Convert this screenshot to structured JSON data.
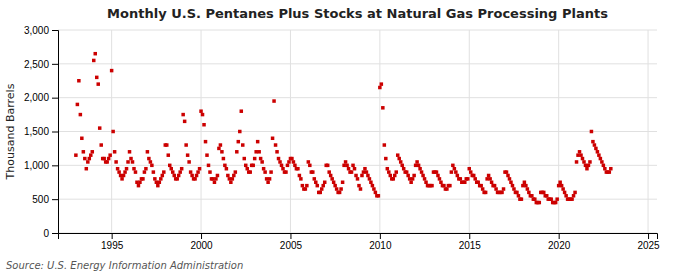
{
  "chart_data": {
    "type": "scatter",
    "title": "Monthly U.S. Pentanes Plus Stocks at Natural Gas Processing Plants",
    "y_label": "Thousand Barrels",
    "annotations": [
      "Source: U.S. Energy Information Administration"
    ],
    "color": "#cc0000",
    "marker": "square",
    "grid": true,
    "xlim": [
      1992.0,
      2025.5
    ],
    "ylim": [
      0,
      3000
    ],
    "xticks": [
      1995,
      2000,
      2005,
      2010,
      2015,
      2020,
      2025
    ],
    "yticks": [
      0,
      500,
      {
        "value": 1000,
        "label": "1,000"
      },
      {
        "value": 1500,
        "label": "1,500"
      },
      {
        "value": 2000,
        "label": "2,000"
      },
      {
        "value": 2500,
        "label": "2,500"
      },
      {
        "value": 3000,
        "label": "3,000"
      }
    ],
    "x": [
      1993.0,
      1993.083,
      1993.167,
      1993.25,
      1993.333,
      1993.417,
      1993.5,
      1993.583,
      1993.667,
      1993.75,
      1993.833,
      1993.917,
      1994.0,
      1994.083,
      1994.167,
      1994.25,
      1994.333,
      1994.417,
      1994.5,
      1994.583,
      1994.667,
      1994.75,
      1994.833,
      1994.917,
      1995.0,
      1995.083,
      1995.167,
      1995.25,
      1995.333,
      1995.417,
      1995.5,
      1995.583,
      1995.667,
      1995.75,
      1995.833,
      1995.917,
      1996.0,
      1996.083,
      1996.167,
      1996.25,
      1996.333,
      1996.417,
      1996.5,
      1996.583,
      1996.667,
      1996.75,
      1996.833,
      1996.917,
      1997.0,
      1997.083,
      1997.167,
      1997.25,
      1997.333,
      1997.417,
      1997.5,
      1997.583,
      1997.667,
      1997.75,
      1997.833,
      1997.917,
      1998.0,
      1998.083,
      1998.167,
      1998.25,
      1998.333,
      1998.417,
      1998.5,
      1998.583,
      1998.667,
      1998.75,
      1998.833,
      1998.917,
      1999.0,
      1999.083,
      1999.167,
      1999.25,
      1999.333,
      1999.417,
      1999.5,
      1999.583,
      1999.667,
      1999.75,
      1999.833,
      1999.917,
      2000.0,
      2000.083,
      2000.167,
      2000.25,
      2000.333,
      2000.417,
      2000.5,
      2000.583,
      2000.667,
      2000.75,
      2000.833,
      2000.917,
      2001.0,
      2001.083,
      2001.167,
      2001.25,
      2001.333,
      2001.417,
      2001.5,
      2001.583,
      2001.667,
      2001.75,
      2001.833,
      2001.917,
      2002.0,
      2002.083,
      2002.167,
      2002.25,
      2002.333,
      2002.417,
      2002.5,
      2002.583,
      2002.667,
      2002.75,
      2002.833,
      2002.917,
      2003.0,
      2003.083,
      2003.167,
      2003.25,
      2003.333,
      2003.417,
      2003.5,
      2003.583,
      2003.667,
      2003.75,
      2003.833,
      2003.917,
      2004.0,
      2004.083,
      2004.167,
      2004.25,
      2004.333,
      2004.417,
      2004.5,
      2004.583,
      2004.667,
      2004.75,
      2004.833,
      2004.917,
      2005.0,
      2005.083,
      2005.167,
      2005.25,
      2005.333,
      2005.417,
      2005.5,
      2005.583,
      2005.667,
      2005.75,
      2005.833,
      2005.917,
      2006.0,
      2006.083,
      2006.167,
      2006.25,
      2006.333,
      2006.417,
      2006.5,
      2006.583,
      2006.667,
      2006.75,
      2006.833,
      2006.917,
      2007.0,
      2007.083,
      2007.167,
      2007.25,
      2007.333,
      2007.417,
      2007.5,
      2007.583,
      2007.667,
      2007.75,
      2007.833,
      2007.917,
      2008.0,
      2008.083,
      2008.167,
      2008.25,
      2008.333,
      2008.417,
      2008.5,
      2008.583,
      2008.667,
      2008.75,
      2008.833,
      2008.917,
      2009.0,
      2009.083,
      2009.167,
      2009.25,
      2009.333,
      2009.417,
      2009.5,
      2009.583,
      2009.667,
      2009.75,
      2009.833,
      2009.917,
      2010.0,
      2010.083,
      2010.167,
      2010.25,
      2010.333,
      2010.417,
      2010.5,
      2010.583,
      2010.667,
      2010.75,
      2010.833,
      2010.917,
      2011.0,
      2011.083,
      2011.167,
      2011.25,
      2011.333,
      2011.417,
      2011.5,
      2011.583,
      2011.667,
      2011.75,
      2011.833,
      2011.917,
      2012.0,
      2012.083,
      2012.167,
      2012.25,
      2012.333,
      2012.417,
      2012.5,
      2012.583,
      2012.667,
      2012.75,
      2012.833,
      2012.917,
      2013.0,
      2013.083,
      2013.167,
      2013.25,
      2013.333,
      2013.417,
      2013.5,
      2013.583,
      2013.667,
      2013.75,
      2013.833,
      2013.917,
      2014.0,
      2014.083,
      2014.167,
      2014.25,
      2014.333,
      2014.417,
      2014.5,
      2014.583,
      2014.667,
      2014.75,
      2014.833,
      2014.917,
      2015.0,
      2015.083,
      2015.167,
      2015.25,
      2015.333,
      2015.417,
      2015.5,
      2015.583,
      2015.667,
      2015.75,
      2015.833,
      2015.917,
      2016.0,
      2016.083,
      2016.167,
      2016.25,
      2016.333,
      2016.417,
      2016.5,
      2016.583,
      2016.667,
      2016.75,
      2016.833,
      2016.917,
      2017.0,
      2017.083,
      2017.167,
      2017.25,
      2017.333,
      2017.417,
      2017.5,
      2017.583,
      2017.667,
      2017.75,
      2017.833,
      2017.917,
      2018.0,
      2018.083,
      2018.167,
      2018.25,
      2018.333,
      2018.417,
      2018.5,
      2018.583,
      2018.667,
      2018.75,
      2018.833,
      2018.917,
      2019.0,
      2019.083,
      2019.167,
      2019.25,
      2019.333,
      2019.417,
      2019.5,
      2019.583,
      2019.667,
      2019.75,
      2019.833,
      2019.917,
      2020.0,
      2020.083,
      2020.167,
      2020.25,
      2020.333,
      2020.417,
      2020.5,
      2020.583,
      2020.667,
      2020.75,
      2020.833,
      2020.917,
      2021.0,
      2021.083,
      2021.167,
      2021.25,
      2021.333,
      2021.417,
      2021.5,
      2021.583,
      2021.667,
      2021.75,
      2021.833,
      2021.917,
      2022.0,
      2022.083,
      2022.167,
      2022.25,
      2022.333,
      2022.417,
      2022.5,
      2022.583,
      2022.667,
      2022.75,
      2022.833,
      2022.917
    ],
    "values": [
      1150,
      1900,
      2250,
      1750,
      1400,
      1200,
      1100,
      950,
      1050,
      1100,
      1150,
      1200,
      2550,
      2650,
      2300,
      2200,
      1550,
      1300,
      1100,
      1100,
      1050,
      1050,
      1100,
      1150,
      2400,
      1500,
      1200,
      1050,
      950,
      900,
      850,
      800,
      850,
      900,
      950,
      1050,
      1200,
      1100,
      1050,
      950,
      900,
      750,
      700,
      750,
      800,
      800,
      900,
      950,
      1200,
      1100,
      1050,
      1000,
      900,
      800,
      750,
      700,
      750,
      800,
      850,
      900,
      1300,
      1300,
      1150,
      1000,
      950,
      900,
      850,
      800,
      800,
      850,
      900,
      950,
      1750,
      1650,
      1300,
      1150,
      1050,
      900,
      850,
      800,
      800,
      850,
      900,
      950,
      1800,
      1750,
      1600,
      1350,
      1150,
      1000,
      900,
      800,
      800,
      750,
      800,
      850,
      1250,
      1300,
      1200,
      1100,
      1000,
      950,
      850,
      800,
      750,
      800,
      850,
      900,
      1200,
      1350,
      1500,
      1800,
      1300,
      1100,
      1000,
      950,
      900,
      900,
      1000,
      1000,
      1100,
      1200,
      1350,
      1200,
      1100,
      1050,
      950,
      900,
      800,
      750,
      800,
      900,
      1400,
      1950,
      1300,
      1200,
      1100,
      1050,
      1000,
      950,
      900,
      900,
      1000,
      1050,
      1100,
      1100,
      1050,
      1000,
      950,
      950,
      850,
      800,
      700,
      650,
      650,
      700,
      1050,
      1000,
      900,
      900,
      800,
      750,
      700,
      600,
      600,
      650,
      700,
      750,
      1000,
      1000,
      900,
      850,
      800,
      750,
      700,
      650,
      600,
      600,
      650,
      750,
      1000,
      1050,
      1000,
      950,
      900,
      900,
      1000,
      950,
      850,
      800,
      700,
      650,
      850,
      900,
      950,
      900,
      850,
      800,
      750,
      700,
      650,
      600,
      550,
      550,
      2150,
      2200,
      1850,
      1300,
      1100,
      950,
      900,
      850,
      800,
      800,
      850,
      900,
      1150,
      1100,
      1050,
      1000,
      950,
      900,
      900,
      850,
      800,
      750,
      800,
      850,
      1000,
      1050,
      1000,
      950,
      900,
      850,
      800,
      750,
      700,
      700,
      700,
      700,
      900,
      900,
      900,
      850,
      800,
      750,
      700,
      700,
      650,
      650,
      700,
      700,
      900,
      1000,
      950,
      900,
      850,
      800,
      800,
      750,
      750,
      750,
      800,
      800,
      950,
      900,
      850,
      850,
      800,
      750,
      750,
      700,
      700,
      650,
      600,
      600,
      800,
      850,
      800,
      750,
      700,
      700,
      650,
      600,
      600,
      600,
      600,
      650,
      900,
      900,
      850,
      800,
      750,
      700,
      650,
      600,
      600,
      550,
      500,
      500,
      700,
      750,
      700,
      650,
      600,
      550,
      550,
      500,
      500,
      450,
      450,
      450,
      600,
      600,
      600,
      550,
      550,
      500,
      500,
      500,
      450,
      450,
      450,
      500,
      700,
      750,
      700,
      650,
      600,
      550,
      500,
      500,
      500,
      500,
      550,
      600,
      1050,
      1150,
      1200,
      1150,
      1100,
      1050,
      1000,
      950,
      1000,
      1050,
      1500,
      1350,
      1300,
      1250,
      1200,
      1150,
      1100,
      1050,
      1000,
      950,
      900,
      900,
      900,
      950
    ]
  }
}
